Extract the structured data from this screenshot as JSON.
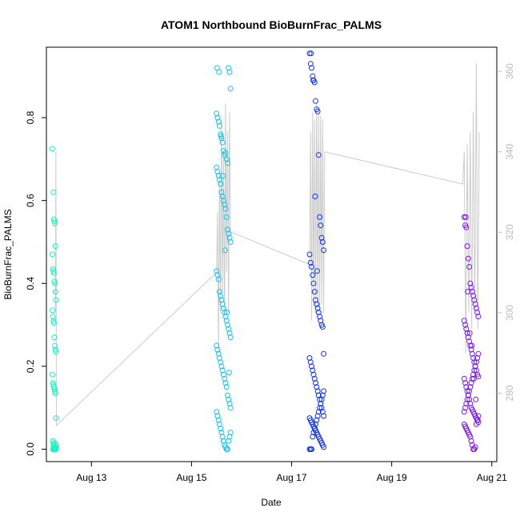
{
  "chart_data": {
    "type": "scatter",
    "title": "ATOM1 Northbound BioBurnFrac_PALMS",
    "xlabel": "Date",
    "ylabel": "BioBurnFrac_PALMS",
    "xlim": [
      12.1,
      21.1
    ],
    "ylim": [
      -0.03,
      0.97
    ],
    "y2lim": [
      263,
      366
    ],
    "x_ticks": [
      13,
      15,
      17,
      19,
      21
    ],
    "x_tick_labels": [
      "Aug 13",
      "Aug 15",
      "Aug 17",
      "Aug 19",
      "Aug 21"
    ],
    "y_ticks": [
      0.0,
      0.2,
      0.4,
      0.6,
      0.8
    ],
    "y_tick_labels": [
      "0.0",
      "0.2",
      "0.4",
      "0.6",
      "0.8"
    ],
    "y2_ticks": [
      280,
      300,
      320,
      340,
      360
    ],
    "y2_tick_labels": [
      "280",
      "300",
      "320",
      "340",
      "360"
    ],
    "grid": false,
    "colors": {
      "flight1": "#1ef0c0",
      "flight2": "#17c2ec",
      "flight3": "#1034e8",
      "flight4": "#7a18e6",
      "line": "#cccccc",
      "right_axis": "#bbbbbb"
    },
    "series": [
      {
        "values_note": "",
        "x": [
          12.22,
          12.24,
          12.25,
          12.26,
          12.27,
          12.28,
          12.22,
          12.23,
          12.24,
          12.25,
          12.26,
          12.27,
          12.28,
          12.29,
          12.22,
          12.23,
          12.24,
          12.25,
          12.26,
          12.27,
          12.28,
          12.29,
          12.22,
          12.23,
          12.24,
          12.25,
          12.26,
          12.27,
          12.28,
          12.29,
          12.23,
          12.24,
          12.25,
          12.26,
          12.27,
          12.28,
          12.29,
          12.23,
          12.24,
          12.25,
          12.26,
          12.27,
          12.28,
          12.29,
          12.3
        ],
        "y": [
          0.725,
          0.62,
          0.555,
          0.55,
          0.545,
          0.49,
          0.47,
          0.435,
          0.43,
          0.425,
          0.405,
          0.4,
          0.38,
          0.36,
          0.335,
          0.32,
          0.31,
          0.305,
          0.27,
          0.25,
          0.24,
          0.235,
          0.18,
          0.16,
          0.155,
          0.15,
          0.145,
          0.14,
          0.135,
          0.075,
          0.02,
          0.015,
          0.01,
          0.005,
          0.0,
          0.0,
          0.005,
          0.0,
          0.01,
          0.0,
          0.0,
          0.015,
          0.003,
          0.0,
          0.01
        ]
      },
      {
        "x": [
          15.5,
          15.52,
          15.54,
          15.56,
          15.58,
          15.6,
          15.62,
          15.64,
          15.66,
          15.68,
          15.7,
          15.72,
          15.74,
          15.76,
          15.78,
          15.5,
          15.52,
          15.54,
          15.56,
          15.58,
          15.6,
          15.62,
          15.64,
          15.66,
          15.68,
          15.7,
          15.72,
          15.74,
          15.76,
          15.78,
          15.5,
          15.52,
          15.54,
          15.56,
          15.58,
          15.6,
          15.62,
          15.64,
          15.66,
          15.68,
          15.7,
          15.72,
          15.74,
          15.76,
          15.78,
          15.5,
          15.52,
          15.54,
          15.56,
          15.58,
          15.6,
          15.62,
          15.64,
          15.66,
          15.68,
          15.7,
          15.72,
          15.74,
          15.76,
          15.78,
          15.5,
          15.52,
          15.54,
          15.56,
          15.58,
          15.6,
          15.62,
          15.64,
          15.66,
          15.68,
          15.7,
          15.72,
          15.74,
          15.76,
          15.78,
          15.51,
          15.55,
          15.59,
          15.63,
          15.67,
          15.71,
          15.75
        ],
        "y": [
          0.81,
          0.8,
          0.79,
          0.78,
          0.76,
          0.75,
          0.74,
          0.72,
          0.71,
          0.715,
          0.7,
          0.69,
          0.92,
          0.91,
          0.87,
          0.68,
          0.67,
          0.66,
          0.65,
          0.64,
          0.62,
          0.61,
          0.6,
          0.59,
          0.58,
          0.56,
          0.53,
          0.52,
          0.51,
          0.5,
          0.43,
          0.42,
          0.41,
          0.38,
          0.37,
          0.36,
          0.35,
          0.34,
          0.33,
          0.32,
          0.31,
          0.3,
          0.29,
          0.28,
          0.27,
          0.25,
          0.24,
          0.23,
          0.22,
          0.21,
          0.2,
          0.19,
          0.18,
          0.17,
          0.16,
          0.15,
          0.13,
          0.12,
          0.11,
          0.1,
          0.09,
          0.08,
          0.07,
          0.06,
          0.05,
          0.04,
          0.03,
          0.02,
          0.01,
          0.005,
          0.0,
          0.0,
          0.02,
          0.03,
          0.04,
          0.92,
          0.91,
          0.755,
          0.66,
          0.48,
          0.33,
          0.185
        ]
      },
      {
        "x": [
          17.36,
          17.38,
          17.4,
          17.42,
          17.44,
          17.46,
          17.48,
          17.5,
          17.52,
          17.54,
          17.56,
          17.58,
          17.6,
          17.62,
          17.64,
          17.36,
          17.38,
          17.4,
          17.42,
          17.44,
          17.46,
          17.48,
          17.5,
          17.52,
          17.54,
          17.56,
          17.58,
          17.6,
          17.62,
          17.64,
          17.36,
          17.38,
          17.4,
          17.42,
          17.44,
          17.46,
          17.48,
          17.5,
          17.52,
          17.54,
          17.56,
          17.58,
          17.6,
          17.62,
          17.64,
          17.36,
          17.38,
          17.4,
          17.42,
          17.44,
          17.46,
          17.48,
          17.5,
          17.52,
          17.54,
          17.56,
          17.58,
          17.6,
          17.62,
          17.64,
          17.36,
          17.38,
          17.4,
          17.42,
          17.44,
          17.46,
          17.48,
          17.5,
          17.52,
          17.54,
          17.56,
          17.58,
          17.6,
          17.62,
          17.64,
          17.39,
          17.43,
          17.47,
          17.51
        ],
        "y": [
          0.955,
          0.93,
          0.92,
          0.9,
          0.89,
          0.885,
          0.84,
          0.82,
          0.815,
          0.71,
          0.56,
          0.54,
          0.51,
          0.5,
          0.48,
          0.47,
          0.45,
          0.44,
          0.42,
          0.4,
          0.38,
          0.36,
          0.35,
          0.34,
          0.33,
          0.32,
          0.31,
          0.3,
          0.295,
          0.23,
          0.22,
          0.21,
          0.2,
          0.19,
          0.18,
          0.17,
          0.16,
          0.15,
          0.14,
          0.13,
          0.12,
          0.11,
          0.1,
          0.09,
          0.08,
          0.075,
          0.07,
          0.065,
          0.06,
          0.055,
          0.05,
          0.045,
          0.04,
          0.035,
          0.03,
          0.025,
          0.02,
          0.015,
          0.01,
          0.005,
          0.0,
          0.0,
          0.0,
          0.03,
          0.04,
          0.05,
          0.06,
          0.07,
          0.08,
          0.09,
          0.1,
          0.11,
          0.12,
          0.13,
          0.14,
          0.955,
          0.89,
          0.61,
          0.43
        ]
      },
      {
        "x": [
          20.45,
          20.47,
          20.49,
          20.51,
          20.53,
          20.55,
          20.57,
          20.59,
          20.61,
          20.63,
          20.65,
          20.67,
          20.69,
          20.71,
          20.73,
          20.45,
          20.47,
          20.49,
          20.51,
          20.53,
          20.55,
          20.57,
          20.59,
          20.61,
          20.63,
          20.65,
          20.67,
          20.69,
          20.71,
          20.73,
          20.45,
          20.47,
          20.49,
          20.51,
          20.53,
          20.55,
          20.57,
          20.59,
          20.61,
          20.63,
          20.65,
          20.67,
          20.69,
          20.71,
          20.73,
          20.45,
          20.47,
          20.49,
          20.51,
          20.53,
          20.55,
          20.57,
          20.59,
          20.61,
          20.63,
          20.65,
          20.67,
          20.69,
          20.71,
          20.73,
          20.45,
          20.47,
          20.49,
          20.51,
          20.53,
          20.55,
          20.57,
          20.59,
          20.61,
          20.63,
          20.65,
          20.67,
          20.69,
          20.71,
          20.73,
          20.48,
          20.52,
          20.56,
          20.6,
          20.64,
          20.68,
          20.72
        ],
        "y": [
          0.56,
          0.54,
          0.535,
          0.49,
          0.46,
          0.44,
          0.4,
          0.39,
          0.38,
          0.37,
          0.36,
          0.35,
          0.34,
          0.33,
          0.32,
          0.31,
          0.3,
          0.29,
          0.28,
          0.27,
          0.26,
          0.25,
          0.24,
          0.23,
          0.22,
          0.21,
          0.2,
          0.19,
          0.18,
          0.175,
          0.17,
          0.16,
          0.15,
          0.14,
          0.13,
          0.12,
          0.11,
          0.1,
          0.095,
          0.09,
          0.085,
          0.08,
          0.075,
          0.07,
          0.065,
          0.06,
          0.055,
          0.05,
          0.045,
          0.04,
          0.035,
          0.03,
          0.02,
          0.01,
          0.0,
          0.0,
          0.005,
          0.06,
          0.07,
          0.08,
          0.09,
          0.1,
          0.11,
          0.12,
          0.13,
          0.14,
          0.15,
          0.16,
          0.17,
          0.18,
          0.19,
          0.2,
          0.21,
          0.22,
          0.23,
          0.56,
          0.38,
          0.28,
          0.25,
          0.17,
          0.12,
          0.07
        ]
      }
    ],
    "line_series": {
      "x": [
        12.28,
        12.29,
        12.3,
        15.5,
        15.52,
        15.54,
        15.56,
        15.58,
        15.6,
        15.62,
        15.64,
        15.66,
        15.68,
        15.7,
        15.72,
        15.74,
        15.76,
        15.78,
        15.8,
        17.36,
        17.38,
        17.4,
        17.42,
        17.44,
        17.46,
        17.48,
        17.5,
        17.52,
        17.54,
        17.56,
        17.58,
        17.6,
        17.62,
        17.64,
        17.66,
        20.42,
        20.45,
        20.48,
        20.51,
        20.54,
        20.57,
        20.6,
        20.63,
        20.66,
        20.69,
        20.72,
        20.75
      ],
      "y2": [
        300,
        340,
        272,
        310,
        325,
        290,
        335,
        300,
        348,
        305,
        340,
        298,
        352,
        310,
        345,
        300,
        350,
        320,
        320,
        312,
        345,
        298,
        350,
        302,
        348,
        300,
        352,
        298,
        350,
        300,
        349,
        302,
        348,
        300,
        340,
        332,
        340,
        290,
        342,
        300,
        345,
        296,
        350,
        300,
        362,
        296,
        345
      ]
    }
  }
}
